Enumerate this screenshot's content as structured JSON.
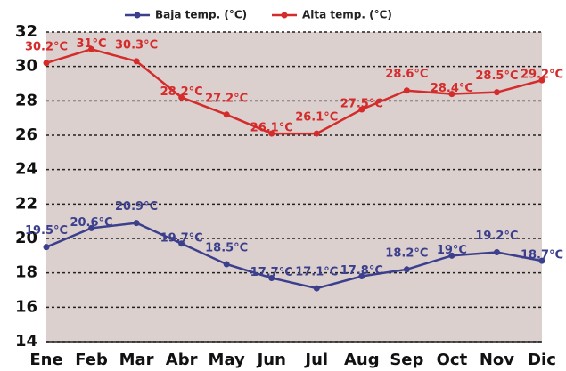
{
  "chart_data": {
    "type": "line",
    "categories": [
      "Ene",
      "Feb",
      "Mar",
      "Abr",
      "May",
      "Jun",
      "Jul",
      "Aug",
      "Sep",
      "Oct",
      "Nov",
      "Dic"
    ],
    "series": [
      {
        "name": "Baja temp. (°C)",
        "color": "#3b3f8c",
        "values": [
          19.5,
          20.6,
          20.9,
          19.7,
          18.5,
          17.7,
          17.1,
          17.8,
          18.2,
          19,
          19.2,
          18.7
        ],
        "value_labels": [
          "19.5°C",
          "20.6°C",
          "20.9°C",
          "19.7°C",
          "18.5°C",
          "17.7°C",
          "17.1°C",
          "17.8°C",
          "18.2°C",
          "19°C",
          "19.2°C",
          "18.7°C"
        ]
      },
      {
        "name": "Alta temp. (°C)",
        "color": "#d42b2b",
        "values": [
          30.2,
          31,
          30.3,
          28.2,
          27.2,
          26.1,
          26.1,
          27.5,
          28.6,
          28.4,
          28.5,
          29.2
        ],
        "value_labels": [
          "30.2°C",
          "31°C",
          "30.3°C",
          "28.2°C",
          "27.2°C",
          "26.1°C",
          "26.1°C",
          "27.5°C",
          "28.6°C",
          "28.4°C",
          "28.5°C",
          "29.2°C"
        ]
      }
    ],
    "ylim": [
      14,
      32
    ],
    "yticks": [
      14,
      16,
      18,
      20,
      22,
      24,
      26,
      28,
      30,
      32
    ],
    "grid": true,
    "legend": "top"
  }
}
